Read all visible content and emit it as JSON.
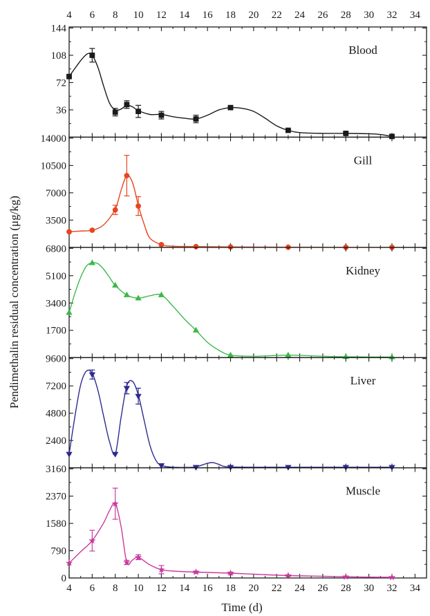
{
  "chart_data": {
    "type": "line",
    "xlabel": "Time (d)",
    "ylabel": "Pendimethalin residual concentration (μg/kg)",
    "xlim": [
      4,
      35
    ],
    "x_ticks": [
      "4",
      "6",
      "8",
      "10",
      "12",
      "14",
      "16",
      "18",
      "20",
      "22",
      "24",
      "26",
      "28",
      "30",
      "32",
      "34"
    ],
    "panels": [
      {
        "name": "Blood",
        "color": "#1a1a1a",
        "marker": "square",
        "ylim": [
          0,
          144
        ],
        "y_ticks": [
          0,
          36,
          72,
          108,
          144
        ],
        "y_tick_labels": [
          "",
          "36",
          "72",
          "108",
          "144"
        ],
        "x": [
          4,
          6,
          8,
          9,
          10,
          12,
          15,
          18,
          23,
          28,
          32
        ],
        "values": [
          80,
          108,
          33,
          43,
          34,
          29,
          24,
          39,
          9,
          5,
          1
        ],
        "errors": [
          0,
          9,
          5,
          5,
          8,
          5,
          5,
          1,
          1,
          1,
          0
        ],
        "curve": [
          [
            4,
            80
          ],
          [
            5,
            101
          ],
          [
            5.6,
            110
          ],
          [
            6,
            108
          ],
          [
            6.5,
            92
          ],
          [
            7,
            67
          ],
          [
            7.5,
            45
          ],
          [
            8,
            36
          ],
          [
            8.5,
            37
          ],
          [
            9,
            42
          ],
          [
            9.5,
            40
          ],
          [
            10,
            35
          ],
          [
            11,
            30
          ],
          [
            12,
            30
          ],
          [
            13,
            27
          ],
          [
            14,
            25
          ],
          [
            15,
            24
          ],
          [
            16,
            29
          ],
          [
            17,
            36
          ],
          [
            18,
            39
          ],
          [
            19,
            38
          ],
          [
            20,
            34
          ],
          [
            21,
            25
          ],
          [
            22,
            15
          ],
          [
            23,
            9
          ],
          [
            24,
            6
          ],
          [
            26,
            5
          ],
          [
            28,
            5
          ],
          [
            30,
            4.5
          ],
          [
            31,
            3.5
          ],
          [
            32,
            1
          ]
        ]
      },
      {
        "name": "Gill",
        "color": "#e8451e",
        "marker": "circle",
        "ylim": [
          0,
          14000
        ],
        "y_ticks": [
          0,
          3500,
          7000,
          10500,
          14000
        ],
        "y_tick_labels": [
          "",
          "3500",
          "7000",
          "10500",
          "14000"
        ],
        "x": [
          4,
          6,
          8,
          9,
          10,
          12,
          15,
          18,
          23,
          28,
          32
        ],
        "values": [
          2000,
          2200,
          4800,
          9200,
          5300,
          350,
          100,
          50,
          20,
          10,
          0
        ],
        "errors": [
          0,
          0,
          600,
          2600,
          1200,
          0,
          0,
          0,
          0,
          0,
          0
        ],
        "curve": [
          [
            4,
            2000
          ],
          [
            5,
            2100
          ],
          [
            6,
            2200
          ],
          [
            7,
            2900
          ],
          [
            8,
            4900
          ],
          [
            8.5,
            7300
          ],
          [
            9,
            9200
          ],
          [
            9.5,
            8300
          ],
          [
            10,
            5400
          ],
          [
            10.5,
            3000
          ],
          [
            11,
            1200
          ],
          [
            12,
            350
          ],
          [
            13,
            150
          ],
          [
            15,
            100
          ],
          [
            18,
            50
          ],
          [
            23,
            20
          ],
          [
            28,
            10
          ],
          [
            32,
            0
          ]
        ]
      },
      {
        "name": "Kidney",
        "color": "#3cb84a",
        "marker": "triangle-up",
        "ylim": [
          0,
          6800
        ],
        "y_ticks": [
          0,
          1700,
          3400,
          5100,
          6800
        ],
        "y_tick_labels": [
          "",
          "1700",
          "3400",
          "5100",
          "6800"
        ],
        "x": [
          4,
          6,
          8,
          9,
          10,
          12,
          15,
          18,
          23,
          28,
          32
        ],
        "values": [
          2800,
          5900,
          4500,
          3900,
          3700,
          3900,
          1700,
          150,
          150,
          50,
          30
        ],
        "errors": [
          0,
          0,
          0,
          0,
          0,
          0,
          0,
          0,
          0,
          0,
          0
        ],
        "curve": [
          [
            4,
            2800
          ],
          [
            4.5,
            4000
          ],
          [
            5,
            5000
          ],
          [
            5.5,
            5700
          ],
          [
            6,
            5900
          ],
          [
            6.5,
            5850
          ],
          [
            7,
            5500
          ],
          [
            7.5,
            5000
          ],
          [
            8,
            4500
          ],
          [
            9,
            3900
          ],
          [
            10,
            3700
          ],
          [
            11,
            3850
          ],
          [
            12,
            3900
          ],
          [
            13,
            3200
          ],
          [
            14,
            2400
          ],
          [
            15,
            1700
          ],
          [
            16,
            950
          ],
          [
            17,
            450
          ],
          [
            18,
            150
          ],
          [
            20,
            80
          ],
          [
            23,
            150
          ],
          [
            26,
            80
          ],
          [
            28,
            50
          ],
          [
            32,
            30
          ]
        ]
      },
      {
        "name": "Liver",
        "color": "#2d2a8f",
        "marker": "triangle-down",
        "ylim": [
          0,
          9600
        ],
        "y_ticks": [
          0,
          2400,
          4800,
          7200,
          9600
        ],
        "y_tick_labels": [
          "",
          "2400",
          "4800",
          "7200",
          "9600"
        ],
        "x": [
          4,
          6,
          8,
          9,
          10,
          12,
          15,
          18,
          23,
          28,
          32
        ],
        "values": [
          1200,
          8200,
          1200,
          7000,
          6300,
          200,
          50,
          50,
          50,
          50,
          50
        ],
        "errors": [
          0,
          400,
          0,
          500,
          700,
          0,
          0,
          0,
          0,
          0,
          0
        ],
        "curve": [
          [
            4,
            1200
          ],
          [
            4.5,
            4500
          ],
          [
            5,
            7300
          ],
          [
            5.5,
            8500
          ],
          [
            6,
            8300
          ],
          [
            6.5,
            6800
          ],
          [
            7,
            4500
          ],
          [
            7.5,
            2300
          ],
          [
            8,
            1200
          ],
          [
            8.5,
            4400
          ],
          [
            9,
            7200
          ],
          [
            9.5,
            7600
          ],
          [
            10,
            6400
          ],
          [
            10.5,
            4200
          ],
          [
            11,
            2000
          ],
          [
            11.5,
            700
          ],
          [
            12,
            200
          ],
          [
            13,
            50
          ],
          [
            14,
            30
          ],
          [
            15,
            80
          ],
          [
            16,
            400
          ],
          [
            16.5,
            450
          ],
          [
            17,
            300
          ],
          [
            18,
            80
          ],
          [
            23,
            50
          ],
          [
            28,
            50
          ],
          [
            32,
            50
          ]
        ]
      },
      {
        "name": "Muscle",
        "color": "#c93a9e",
        "marker": "star",
        "ylim": [
          0,
          3160
        ],
        "y_ticks": [
          0,
          790,
          1580,
          2370,
          3160
        ],
        "y_tick_labels": [
          "0",
          "790",
          "1580",
          "2370",
          "3160"
        ],
        "x": [
          4,
          6,
          8,
          9,
          10,
          12,
          15,
          18,
          23,
          28,
          32
        ],
        "values": [
          430,
          1080,
          2150,
          450,
          600,
          240,
          170,
          140,
          70,
          35,
          20
        ],
        "errors": [
          0,
          300,
          450,
          60,
          70,
          120,
          30,
          30,
          20,
          10,
          10
        ],
        "curve": [
          [
            4,
            430
          ],
          [
            5,
            760
          ],
          [
            6,
            1080
          ],
          [
            7,
            1600
          ],
          [
            7.5,
            1950
          ],
          [
            8,
            2150
          ],
          [
            8.5,
            1500
          ],
          [
            9,
            450
          ],
          [
            9.5,
            520
          ],
          [
            10,
            600
          ],
          [
            11,
            380
          ],
          [
            12,
            240
          ],
          [
            13,
            200
          ],
          [
            15,
            170
          ],
          [
            18,
            140
          ],
          [
            20,
            110
          ],
          [
            23,
            70
          ],
          [
            26,
            50
          ],
          [
            28,
            35
          ],
          [
            30,
            25
          ],
          [
            32,
            20
          ]
        ]
      }
    ]
  }
}
